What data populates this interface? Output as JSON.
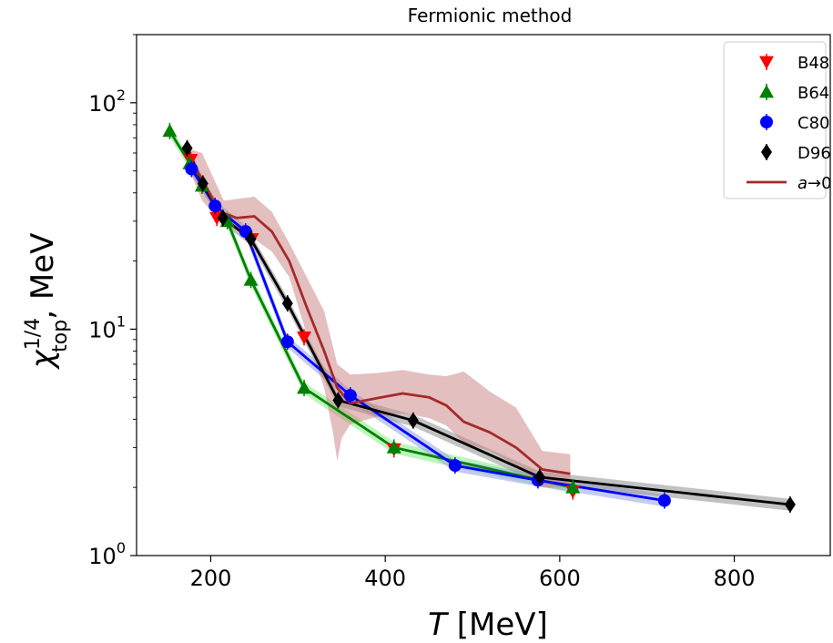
{
  "chart_data": {
    "type": "line",
    "title": "Fermionic method",
    "xlabel": {
      "prefix": "T",
      "suffix": " [MeV]"
    },
    "ylabel": {
      "main": "χ",
      "sup": "1/4",
      "sub": "top",
      "suffix": ", MeV"
    },
    "x_scale": "linear",
    "y_scale": "log",
    "xlim": [
      115,
      910
    ],
    "ylim": [
      1,
      200
    ],
    "x_ticks": [
      200,
      400,
      600,
      800
    ],
    "x_tick_labels": [
      "200",
      "400",
      "600",
      "800"
    ],
    "y_ticks": [
      1,
      10,
      100
    ],
    "y_tick_labels": [
      {
        "base": "10",
        "exp": "0"
      },
      {
        "base": "10",
        "exp": "1"
      },
      {
        "base": "10",
        "exp": "2"
      }
    ],
    "grid": false,
    "legend_position": "top-right",
    "legend": [
      {
        "label": "B48",
        "color": "#ff0000",
        "marker": "triangle-down"
      },
      {
        "label": "B64",
        "color": "#008000",
        "marker": "triangle-up"
      },
      {
        "label": "C80",
        "color": "#0000ff",
        "marker": "circle"
      },
      {
        "label": "D96",
        "color": "#000000",
        "marker": "diamond"
      },
      {
        "label_italic": "a",
        "label_rest": "→0",
        "color": "#a52a2a",
        "marker": "line"
      }
    ],
    "series": [
      {
        "name": "B48",
        "color": "#ff0000",
        "marker": "triangle-down",
        "line": false,
        "points": [
          [
            177,
            56
          ],
          [
            207,
            31
          ],
          [
            247,
            25
          ],
          [
            307,
            9.2
          ],
          [
            410,
            2.95
          ],
          [
            615,
            1.92
          ]
        ]
      },
      {
        "name": "B64",
        "color": "#008000",
        "marker": "triangle-up",
        "line": true,
        "band_color": "#90ee90",
        "points": [
          [
            153,
            75
          ],
          [
            176,
            54
          ],
          [
            190,
            43
          ],
          [
            219,
            30
          ],
          [
            246,
            16.5
          ],
          [
            307,
            5.5
          ],
          [
            410,
            3.0
          ],
          [
            615,
            2.0
          ]
        ]
      },
      {
        "name": "C80",
        "color": "#0000ff",
        "marker": "circle",
        "line": true,
        "band_color": "#9ea8e8",
        "points": [
          [
            178,
            51
          ],
          [
            205,
            35
          ],
          [
            240,
            27
          ],
          [
            288,
            8.8
          ],
          [
            360,
            5.1
          ],
          [
            480,
            2.5
          ],
          [
            575,
            2.15
          ],
          [
            720,
            1.75
          ]
        ]
      },
      {
        "name": "D96",
        "color": "#000000",
        "marker": "diamond",
        "line": true,
        "band_color": "#9a9a9a",
        "points": [
          [
            173,
            63
          ],
          [
            191,
            44
          ],
          [
            214,
            31
          ],
          [
            246,
            25
          ],
          [
            288,
            13
          ],
          [
            346,
            4.85
          ],
          [
            432,
            3.95
          ],
          [
            577,
            2.22
          ],
          [
            864,
            1.68
          ]
        ]
      },
      {
        "name": "a→0",
        "color": "#a52a2a",
        "marker": "none",
        "line": true,
        "band_color": "#c98080",
        "points": [
          [
            178,
            55
          ],
          [
            190,
            46
          ],
          [
            210,
            33
          ],
          [
            230,
            31
          ],
          [
            250,
            31.5
          ],
          [
            270,
            27
          ],
          [
            290,
            20
          ],
          [
            310,
            12.5
          ],
          [
            330,
            8
          ],
          [
            345,
            5.5
          ],
          [
            360,
            4.7
          ],
          [
            390,
            4.95
          ],
          [
            420,
            5.2
          ],
          [
            450,
            5.0
          ],
          [
            470,
            4.6
          ],
          [
            490,
            3.9
          ],
          [
            520,
            3.5
          ],
          [
            550,
            3.0
          ],
          [
            580,
            2.4
          ],
          [
            612,
            2.3
          ]
        ],
        "band_upper": [
          [
            178,
            62
          ],
          [
            190,
            60
          ],
          [
            215,
            37
          ],
          [
            240,
            38
          ],
          [
            250,
            38.5
          ],
          [
            270,
            33
          ],
          [
            290,
            24
          ],
          [
            310,
            17
          ],
          [
            330,
            12
          ],
          [
            345,
            7
          ],
          [
            360,
            6.3
          ],
          [
            390,
            6.4
          ],
          [
            420,
            6.6
          ],
          [
            450,
            6.3
          ],
          [
            470,
            6.2
          ],
          [
            490,
            6.5
          ],
          [
            520,
            5.3
          ],
          [
            550,
            4.5
          ],
          [
            580,
            2.9
          ],
          [
            612,
            2.8
          ]
        ],
        "band_lower": [
          [
            178,
            48
          ],
          [
            190,
            37
          ],
          [
            215,
            29
          ],
          [
            240,
            26
          ],
          [
            250,
            25
          ],
          [
            270,
            22
          ],
          [
            290,
            17
          ],
          [
            310,
            9.5
          ],
          [
            330,
            5.5
          ],
          [
            340,
            3.5
          ],
          [
            345,
            2.6
          ],
          [
            350,
            3.3
          ],
          [
            360,
            3.8
          ],
          [
            390,
            4.1
          ],
          [
            420,
            4.25
          ],
          [
            450,
            4.05
          ],
          [
            470,
            3.75
          ],
          [
            490,
            3.15
          ],
          [
            520,
            2.9
          ],
          [
            550,
            2.5
          ],
          [
            580,
            2.0
          ],
          [
            612,
            2.0
          ]
        ]
      }
    ]
  }
}
